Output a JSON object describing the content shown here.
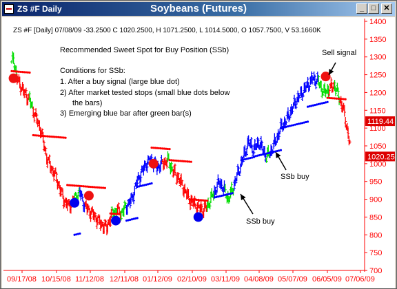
{
  "window": {
    "title": "ZS #F Daily",
    "controls": {
      "minimize": "_",
      "maximize": "□",
      "close": "✕"
    }
  },
  "chart_data": {
    "type": "bar",
    "title": "Soybeans (Futures)",
    "info_line": "ZS #F [Daily] 07/08/09 -33.2500 C 1020.2500, H 1071.2500, L 1014.5000, O 1057.7500, V 53.1660K",
    "ylim": [
      700,
      1400
    ],
    "y_ticks": [
      "1400",
      "1350",
      "1300",
      "1250",
      "1200",
      "1150",
      "1100",
      "1050",
      "1000",
      "950",
      "900",
      "850",
      "800",
      "750",
      "700"
    ],
    "x_ticks": [
      "09/17/08",
      "10/15/08",
      "11/12/08",
      "12/11/08",
      "01/12/09",
      "02/10/09",
      "03/11/09",
      "04/08/09",
      "05/07/09",
      "06/05/09",
      "07/06/09"
    ],
    "price_labels": [
      "1119.44",
      "1020.25"
    ],
    "colors": {
      "down": "#ff0000",
      "up_strong": "#0000ff",
      "up_emerging": "#00dd00",
      "axis": "#ff0000",
      "stop": "#0000ff",
      "sell": "#ff0000"
    },
    "ohlc_series_description": "Daily OHLC bars, colour-coded by trend",
    "key_points": [
      {
        "label": "Sell signal",
        "date": "09/17/08",
        "price": 1240
      },
      {
        "label": "Sell signal",
        "date": "11/10/08",
        "price": 910
      },
      {
        "label": "Buy signal",
        "date": "11/03/08",
        "price": 890
      },
      {
        "label": "Buy signal",
        "date": "12/08/08",
        "price": 840
      },
      {
        "label": "Sell signal",
        "date": "02/05/09",
        "price": 1000
      },
      {
        "label": "Buy signal",
        "date": "03/11/09",
        "price": 850
      },
      {
        "label": "Sell signal",
        "date": "06/26/09",
        "price": 1245
      }
    ]
  },
  "notes": {
    "heading": "Recommended Sweet Spot for Buy Position (SSb)",
    "conditions_title": "Conditions for SSb:",
    "conditions": [
      "1. After a buy signal (large blue dot)",
      "2) After market tested stops (small blue dots below",
      "the bars)",
      "3) Emerging blue bar after green bar(s)"
    ],
    "annotations": {
      "sell_signal": "Sell signal",
      "ssb_buy_1": "SSb buy",
      "ssb_buy_2": "SSb buy"
    }
  }
}
